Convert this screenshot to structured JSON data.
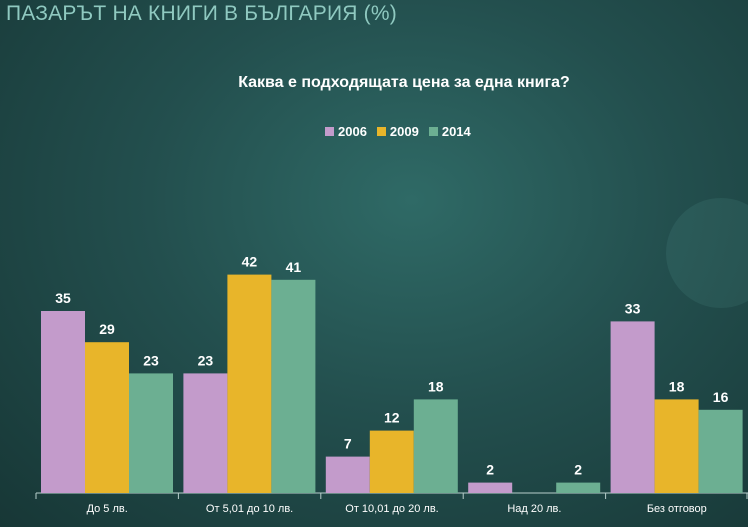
{
  "page_title": "ПАЗАРЪТ НА КНИГИ В БЪЛГАРИЯ (%)",
  "chart_data": {
    "type": "bar",
    "title": "Каква е подходящата цена за една книга?",
    "categories": [
      "До 5 лв.",
      "От 5,01 до 10 лв.",
      "От 10,01 до 20 лв.",
      "Над 20 лв.",
      "Без отговор"
    ],
    "series": [
      {
        "name": "2006",
        "color": "#c39bcb",
        "values": [
          35,
          23,
          7,
          2,
          33
        ]
      },
      {
        "name": "2009",
        "color": "#e8b52a",
        "values": [
          29,
          42,
          12,
          null,
          18
        ]
      },
      {
        "name": "2014",
        "color": "#6caf92",
        "values": [
          23,
          41,
          18,
          2,
          16
        ]
      }
    ],
    "ylim": [
      0,
      45
    ],
    "legend": "top-center",
    "grid": false
  }
}
